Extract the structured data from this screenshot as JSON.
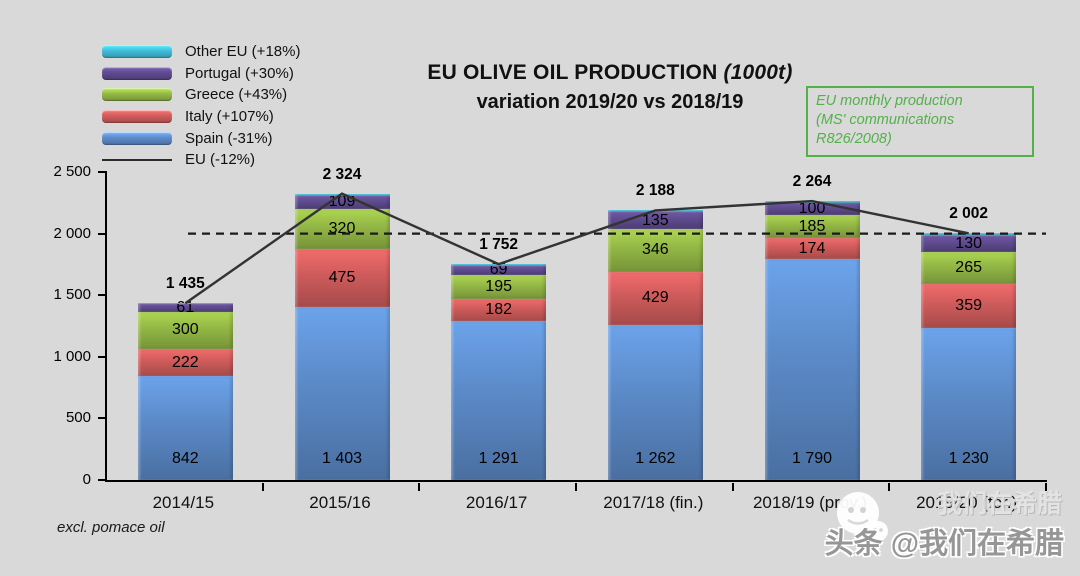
{
  "title": {
    "bold_prefix": "EU",
    "main": "OLIVE OIL PRODUCTION",
    "unit": "(1000t)",
    "subtitle": "variation 2019/20 vs 2018/19"
  },
  "annotation": {
    "lines": [
      "EU monthly production",
      "(MS' communications",
      "R826/2008)"
    ],
    "color": "#53b04a"
  },
  "footnote": "excl. pomace oil",
  "watermark": {
    "text": "头条 @我们在希腊",
    "ghost": "我们在希腊"
  },
  "chart_data": {
    "type": "bar",
    "variant": "stacked-bars-with-total-line",
    "title": "EU OLIVE OIL PRODUCTION (1000t) variation 2019/20 vs 2018/19",
    "background": "#d9d9d9",
    "grid": false,
    "legend_position": "top-left",
    "ylim": [
      0,
      2500
    ],
    "y_ticks": [
      "0",
      "500",
      "1 000",
      "1 500",
      "2 000",
      "2 500"
    ],
    "categories": [
      "2014/15",
      "2015/16",
      "2016/17",
      "2017/18 (fin.)",
      "2018/19 (prov.)",
      "2019/20 (for.)"
    ],
    "series": [
      {
        "key": "spain",
        "name": "Spain (-31%)",
        "color": "#5c8bc9",
        "values": [
          842,
          1403,
          1291,
          1262,
          1790,
          1230
        ],
        "labels": [
          "842",
          "1 403",
          "1 291",
          "1 262",
          "1 790",
          "1 230"
        ],
        "show_labels": true
      },
      {
        "key": "italy",
        "name": "Italy (+107%)",
        "color": "#d05c5c",
        "values": [
          222,
          475,
          182,
          429,
          174,
          359
        ],
        "labels": [
          "222",
          "475",
          "182",
          "429",
          "174",
          "359"
        ],
        "show_labels": true
      },
      {
        "key": "greece",
        "name": "Greece (+43%)",
        "color": "#94b846",
        "values": [
          300,
          320,
          195,
          346,
          185,
          265
        ],
        "labels": [
          "300",
          "320",
          "195",
          "346",
          "185",
          "265"
        ],
        "show_labels": true
      },
      {
        "key": "portugal",
        "name": "Portugal (+30%)",
        "color": "#5f4b8f",
        "values": [
          61,
          109,
          69,
          135,
          100,
          130
        ],
        "labels": [
          "61",
          "109",
          "69",
          "135",
          "100",
          "130"
        ],
        "show_labels": true
      },
      {
        "key": "other_eu",
        "name": "Other EU (+18%)",
        "color": "#41bcd9",
        "values": [
          10,
          17,
          15,
          16,
          15,
          18
        ],
        "labels": null,
        "show_labels": false,
        "estimated_from_totals": true
      }
    ],
    "line_series": {
      "key": "eu",
      "name": "EU (-12%)",
      "color": "#333333",
      "values": [
        1435,
        2324,
        1752,
        2188,
        2264,
        2002
      ]
    },
    "totals_labels": [
      "1 435",
      "2 324",
      "1 752",
      "2 188",
      "2 264",
      "2 002"
    ],
    "reference_line": {
      "value": 2000,
      "style": "dashed",
      "color": "#1a1a1a"
    },
    "legend": [
      {
        "key": "other_eu",
        "label": "Other EU (+18%)",
        "color": "#41bcd9",
        "type": "box"
      },
      {
        "key": "portugal",
        "label": "Portugal (+30%)",
        "color": "#5f4b8f",
        "type": "box"
      },
      {
        "key": "greece",
        "label": "Greece (+43%)",
        "color": "#94b846",
        "type": "box"
      },
      {
        "key": "italy",
        "label": "Italy (+107%)",
        "color": "#d05c5c",
        "type": "box"
      },
      {
        "key": "spain",
        "label": "Spain (-31%)",
        "color": "#5c8bc9",
        "type": "box"
      },
      {
        "key": "eu",
        "label": "EU (-12%)",
        "color": "#2b2b2b",
        "type": "line"
      }
    ]
  }
}
